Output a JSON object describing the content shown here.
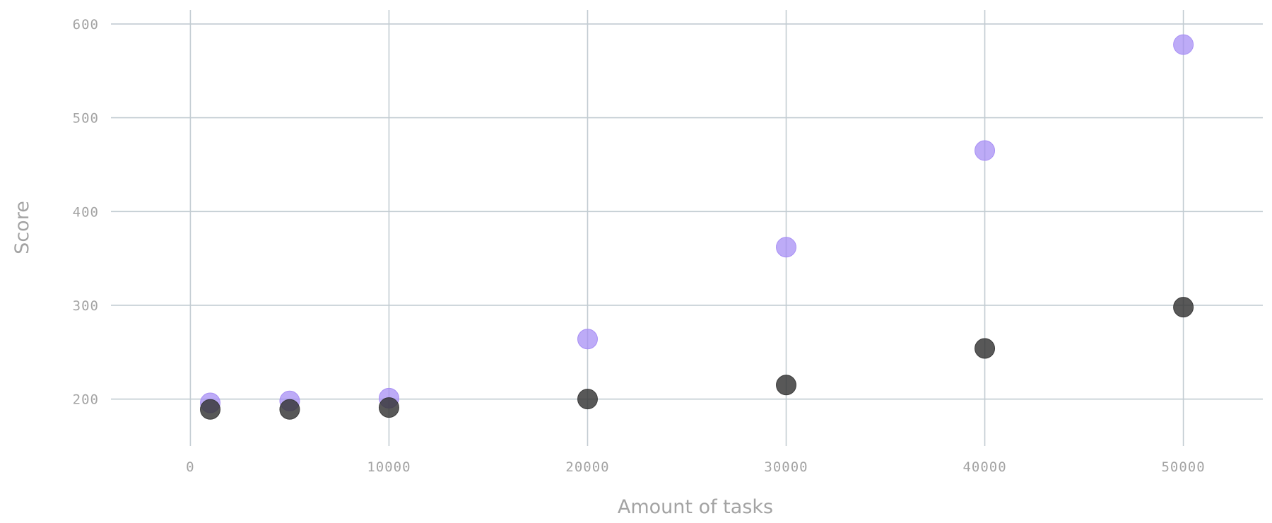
{
  "chart_data": {
    "type": "scatter",
    "title": "",
    "xlabel": "Amount of tasks",
    "ylabel": "Score",
    "xlim": [
      -4000,
      54000
    ],
    "ylim": [
      150,
      615
    ],
    "xticks": [
      0,
      10000,
      20000,
      30000,
      40000,
      50000
    ],
    "yticks": [
      200,
      300,
      400,
      500,
      600
    ],
    "grid": true,
    "series": [
      {
        "color": "#a48af4",
        "points": [
          {
            "x": 1000,
            "y": 196
          },
          {
            "x": 5000,
            "y": 198
          },
          {
            "x": 10000,
            "y": 201
          },
          {
            "x": 20000,
            "y": 264
          },
          {
            "x": 30000,
            "y": 362
          },
          {
            "x": 40000,
            "y": 465
          },
          {
            "x": 50000,
            "y": 578
          }
        ]
      },
      {
        "color": "#333333",
        "points": [
          {
            "x": 1000,
            "y": 189
          },
          {
            "x": 5000,
            "y": 189
          },
          {
            "x": 10000,
            "y": 191
          },
          {
            "x": 20000,
            "y": 200
          },
          {
            "x": 30000,
            "y": 215
          },
          {
            "x": 40000,
            "y": 254
          },
          {
            "x": 50000,
            "y": 298
          }
        ]
      }
    ]
  }
}
